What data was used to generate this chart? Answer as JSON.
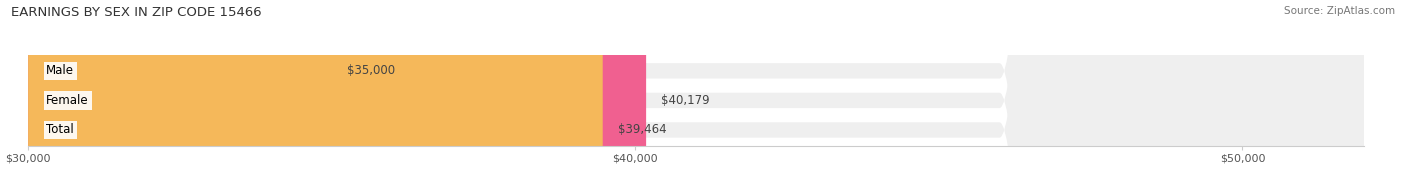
{
  "title": "EARNINGS BY SEX IN ZIP CODE 15466",
  "source": "Source: ZipAtlas.com",
  "categories": [
    "Male",
    "Female",
    "Total"
  ],
  "values": [
    35000,
    40179,
    39464
  ],
  "bar_colors": [
    "#a8c8e8",
    "#f06090",
    "#f5b85a"
  ],
  "xlim": [
    30000,
    52000
  ],
  "xticks": [
    30000,
    40000,
    50000
  ],
  "xticklabels": [
    "$30,000",
    "$40,000",
    "$50,000"
  ],
  "value_labels": [
    "$35,000",
    "$40,179",
    "$39,464"
  ],
  "bar_bg_color": "#efefef",
  "background_color": "#ffffff",
  "title_fontsize": 9.5,
  "label_fontsize": 8.5,
  "tick_fontsize": 8.0,
  "source_fontsize": 7.5
}
